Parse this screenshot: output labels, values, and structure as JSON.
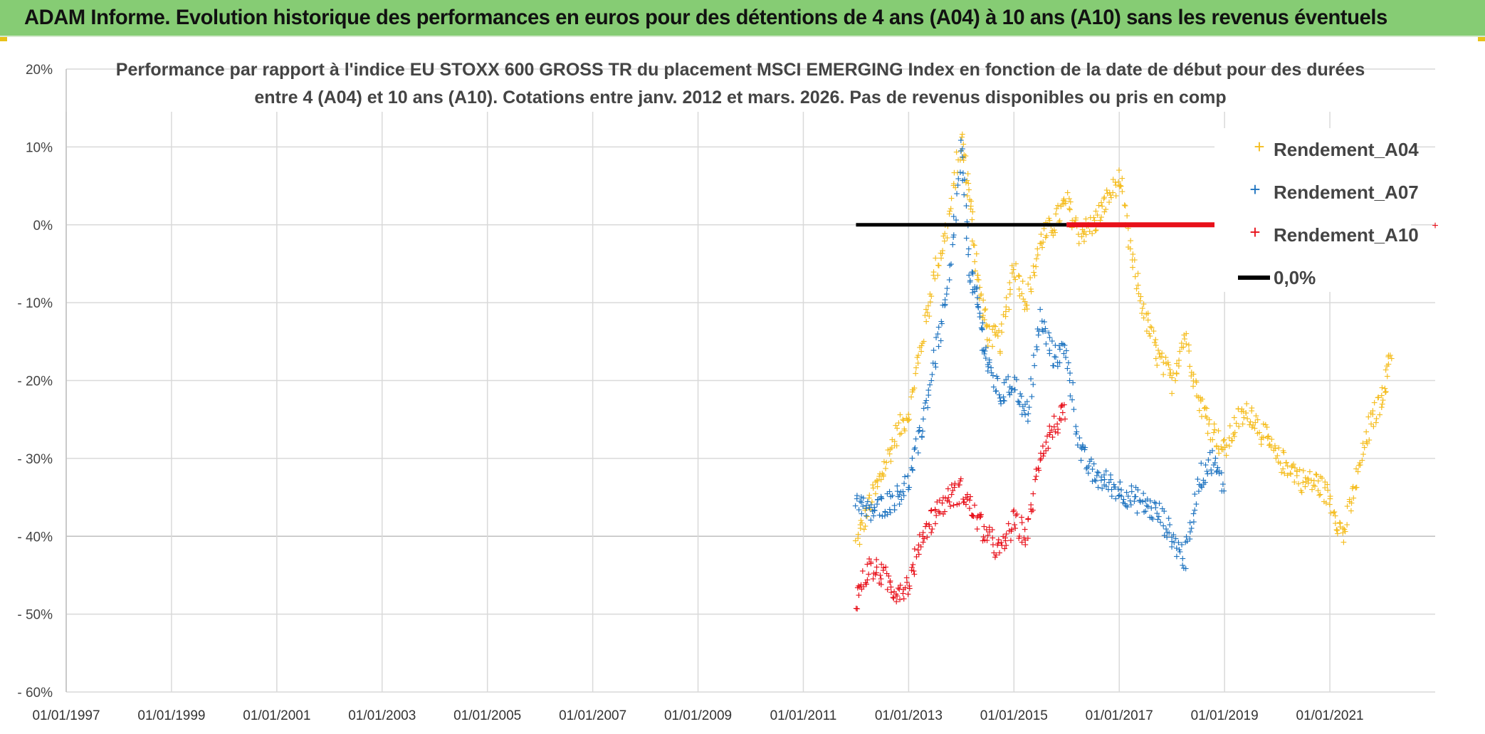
{
  "header": {
    "title": "ADAM Informe. Evolution historique des performances en euros pour des détentions de 4 ans (A04) à 10 ans (A10) sans les revenus éventuels"
  },
  "colors": {
    "header_bg": "#86cc74",
    "a04": "#f5bd1f",
    "a07": "#1f74c0",
    "a10": "#e8101a",
    "zero_line": "#000000",
    "grid": "#d9d9d9"
  },
  "chart_data": {
    "type": "scatter",
    "title_lines": [
      "Performance par rapport à l'indice EU STOXX 600 GROSS TR  du placement MSCI EMERGING Index en fonction de la date de début pour des durées",
      "entre 4 (A04) et 10 ans (A10). Cotations entre janv. 2012 et mars. 2026. Pas de revenus disponibles ou pris en comp"
    ],
    "x_ticks": [
      "01/01/1997",
      "01/01/1999",
      "01/01/2001",
      "01/01/2003",
      "01/01/2005",
      "01/01/2007",
      "01/01/2009",
      "01/01/2011",
      "01/01/2013",
      "01/01/2015",
      "01/01/2017",
      "01/01/2019",
      "01/01/2021"
    ],
    "x_range": [
      "1997-01-01",
      "2023-01-01"
    ],
    "y_ticks": [
      "20%",
      "10%",
      "0%",
      "- 10%",
      "- 20%",
      "- 30%",
      "- 40%",
      "- 50%",
      "- 60%"
    ],
    "y_range": [
      -60,
      20
    ],
    "legend_position": "top-right",
    "grid": true,
    "series": [
      {
        "name": "Rendement_A04",
        "marker": "plus",
        "x": [
          "2012-01",
          "2012-04",
          "2012-07",
          "2012-10",
          "2013-01",
          "2013-04",
          "2013-07",
          "2013-10",
          "2014-01",
          "2014-03",
          "2014-05",
          "2014-07",
          "2014-10",
          "2015-01",
          "2015-04",
          "2015-07",
          "2015-10",
          "2016-01",
          "2016-04",
          "2016-07",
          "2016-10",
          "2017-01",
          "2017-04",
          "2017-07",
          "2017-10",
          "2018-01",
          "2018-04",
          "2018-07",
          "2018-10",
          "2019-01",
          "2019-04",
          "2019-07",
          "2019-10",
          "2020-01",
          "2020-04",
          "2020-07",
          "2020-10",
          "2021-01",
          "2021-04",
          "2021-07",
          "2021-10",
          "2022-01",
          "2022-03"
        ],
        "values": [
          -41,
          -36,
          -32,
          -27,
          -24,
          -15,
          -6,
          0,
          11,
          3,
          -8,
          -14,
          -15,
          -5,
          -10,
          -2,
          0,
          3,
          -1,
          0,
          3,
          6,
          -5,
          -12,
          -17,
          -20,
          -14,
          -22,
          -26,
          -29,
          -25,
          -24,
          -27,
          -30,
          -31,
          -33,
          -33,
          -35,
          -40,
          -33,
          -26,
          -22,
          -16
        ]
      },
      {
        "name": "Rendement_A07",
        "marker": "plus",
        "x": [
          "2012-01",
          "2012-04",
          "2012-07",
          "2012-10",
          "2013-01",
          "2013-04",
          "2013-07",
          "2013-10",
          "2014-01",
          "2014-03",
          "2014-05",
          "2014-07",
          "2014-10",
          "2015-01",
          "2015-04",
          "2015-07",
          "2015-10",
          "2016-01",
          "2016-04",
          "2016-07",
          "2016-10",
          "2017-01",
          "2017-04",
          "2017-07",
          "2017-10",
          "2018-01",
          "2018-04",
          "2018-07",
          "2018-10",
          "2019-01"
        ],
        "values": [
          -35,
          -37,
          -36,
          -35,
          -33,
          -26,
          -17,
          -9,
          10,
          -6,
          -11,
          -18,
          -22,
          -20,
          -25,
          -12,
          -17,
          -16,
          -29,
          -32,
          -33,
          -34,
          -35,
          -36,
          -37,
          -40,
          -43,
          -33,
          -30,
          -34
        ]
      },
      {
        "name": "Rendement_A10",
        "marker": "plus",
        "x": [
          "2012-01",
          "2012-04",
          "2012-07",
          "2012-10",
          "2013-01",
          "2013-04",
          "2013-07",
          "2013-10",
          "2014-01",
          "2014-04",
          "2014-07",
          "2014-10",
          "2015-01",
          "2015-04",
          "2015-07",
          "2015-10",
          "2016-01"
        ],
        "values": [
          -48,
          -44,
          -45,
          -47,
          -46,
          -40,
          -37,
          -35,
          -34,
          -37,
          -40,
          -42,
          -38,
          -40,
          -29,
          -26,
          -24
        ]
      },
      {
        "name": "0,0%",
        "marker": "line",
        "x": [
          "2012-01",
          "2016-01"
        ],
        "values": [
          0,
          0
        ]
      }
    ],
    "extra_red_segment": {
      "x": [
        "2016-01",
        "2019-01"
      ],
      "values": [
        0,
        0
      ]
    }
  }
}
